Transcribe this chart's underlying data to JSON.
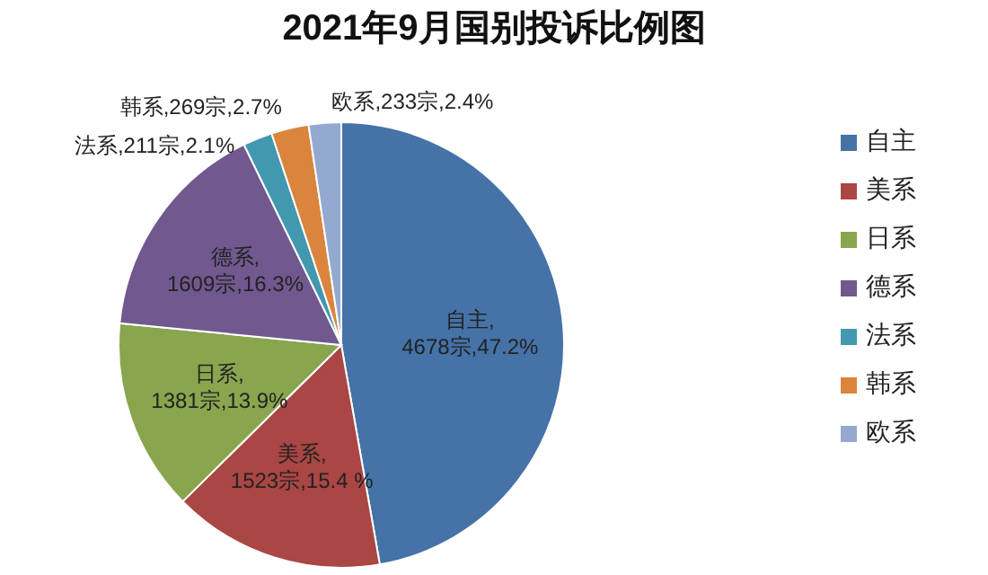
{
  "chart_data": {
    "type": "pie",
    "title": "2021年9月国别投诉比例图",
    "categories": [
      "自主",
      "美系",
      "日系",
      "德系",
      "法系",
      "韩系",
      "欧系"
    ],
    "values": [
      4678,
      1523,
      1381,
      1609,
      211,
      269,
      233
    ],
    "colors": [
      "#4572a7",
      "#aa4643",
      "#89a54e",
      "#71588f",
      "#4198af",
      "#db843d",
      "#93a9cf"
    ],
    "value_labels": [
      "自主,4678宗,47.2%",
      "美系,1523宗,15.4 %",
      "日系,1381宗,13.9%",
      "德系,1609宗,16.3%",
      "法系,211宗,2.1%",
      "韩系,269宗,2.7%",
      "欧系,233宗,2.4%"
    ],
    "legend": "right"
  }
}
